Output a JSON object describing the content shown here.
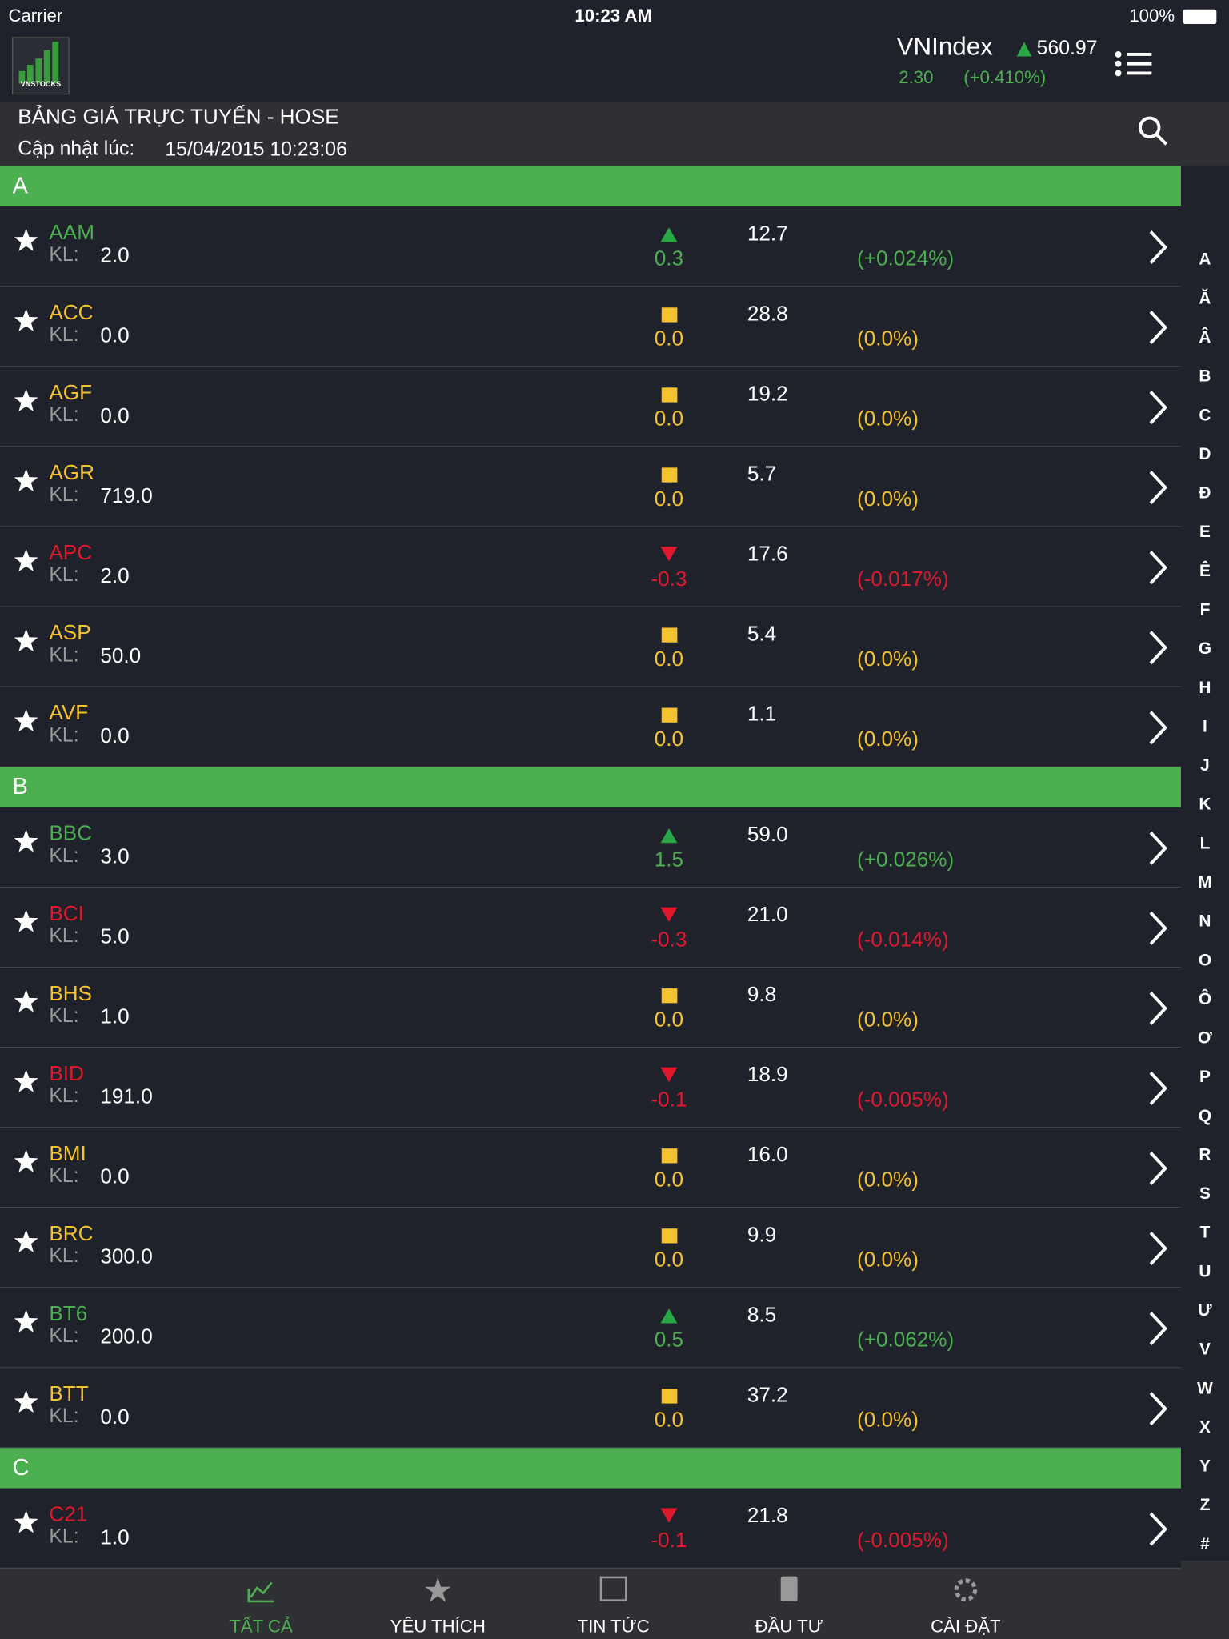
{
  "status_bar": {
    "carrier": "Carrier",
    "time": "10:23 AM",
    "battery": "100%"
  },
  "header": {
    "logo": "VNSTOCKS",
    "index_name": "VNIndex",
    "index_value": "560.97",
    "index_change": "2.30",
    "index_pct": "(+0.410%)"
  },
  "board": {
    "title": "BẢNG GIÁ TRỰC TUYẾN - HOSE",
    "update_label": "Cập nhật lúc:",
    "update_time": "15/04/2015 10:23:06"
  },
  "volume_label": "KL:",
  "sections": [
    {
      "letter": "A",
      "rows": [
        {
          "symbol": "AAM",
          "volume": "2.0",
          "change": "0.3",
          "price": "12.7",
          "pct": "(+0.024%)",
          "trend": "up"
        },
        {
          "symbol": "ACC",
          "volume": "0.0",
          "change": "0.0",
          "price": "28.8",
          "pct": "(0.0%)",
          "trend": "flat"
        },
        {
          "symbol": "AGF",
          "volume": "0.0",
          "change": "0.0",
          "price": "19.2",
          "pct": "(0.0%)",
          "trend": "flat"
        },
        {
          "symbol": "AGR",
          "volume": "719.0",
          "change": "0.0",
          "price": "5.7",
          "pct": "(0.0%)",
          "trend": "flat"
        },
        {
          "symbol": "APC",
          "volume": "2.0",
          "change": "-0.3",
          "price": "17.6",
          "pct": "(-0.017%)",
          "trend": "down"
        },
        {
          "symbol": "ASP",
          "volume": "50.0",
          "change": "0.0",
          "price": "5.4",
          "pct": "(0.0%)",
          "trend": "flat"
        },
        {
          "symbol": "AVF",
          "volume": "0.0",
          "change": "0.0",
          "price": "1.1",
          "pct": "(0.0%)",
          "trend": "flat"
        }
      ]
    },
    {
      "letter": "B",
      "rows": [
        {
          "symbol": "BBC",
          "volume": "3.0",
          "change": "1.5",
          "price": "59.0",
          "pct": "(+0.026%)",
          "trend": "up"
        },
        {
          "symbol": "BCI",
          "volume": "5.0",
          "change": "-0.3",
          "price": "21.0",
          "pct": "(-0.014%)",
          "trend": "down"
        },
        {
          "symbol": "BHS",
          "volume": "1.0",
          "change": "0.0",
          "price": "9.8",
          "pct": "(0.0%)",
          "trend": "flat"
        },
        {
          "symbol": "BID",
          "volume": "191.0",
          "change": "-0.1",
          "price": "18.9",
          "pct": "(-0.005%)",
          "trend": "down"
        },
        {
          "symbol": "BMI",
          "volume": "0.0",
          "change": "0.0",
          "price": "16.0",
          "pct": "(0.0%)",
          "trend": "flat"
        },
        {
          "symbol": "BRC",
          "volume": "300.0",
          "change": "0.0",
          "price": "9.9",
          "pct": "(0.0%)",
          "trend": "flat"
        },
        {
          "symbol": "BT6",
          "volume": "200.0",
          "change": "0.5",
          "price": "8.5",
          "pct": "(+0.062%)",
          "trend": "up"
        },
        {
          "symbol": "BTT",
          "volume": "0.0",
          "change": "0.0",
          "price": "37.2",
          "pct": "(0.0%)",
          "trend": "flat"
        }
      ]
    },
    {
      "letter": "C",
      "rows": [
        {
          "symbol": "C21",
          "volume": "1.0",
          "change": "-0.1",
          "price": "21.8",
          "pct": "(-0.005%)",
          "trend": "down"
        }
      ]
    }
  ],
  "index_letters": [
    "A",
    "Ă",
    "Â",
    "B",
    "C",
    "D",
    "Đ",
    "E",
    "Ê",
    "F",
    "G",
    "H",
    "I",
    "J",
    "K",
    "L",
    "M",
    "N",
    "O",
    "Ô",
    "Ơ",
    "P",
    "Q",
    "R",
    "S",
    "T",
    "U",
    "Ư",
    "V",
    "W",
    "X",
    "Y",
    "Z",
    "#"
  ],
  "tabs": [
    "TẤT CẢ",
    "YÊU THÍCH",
    "TIN TỨC",
    "ĐẦU TƯ",
    "CÀI ĐẶT"
  ]
}
